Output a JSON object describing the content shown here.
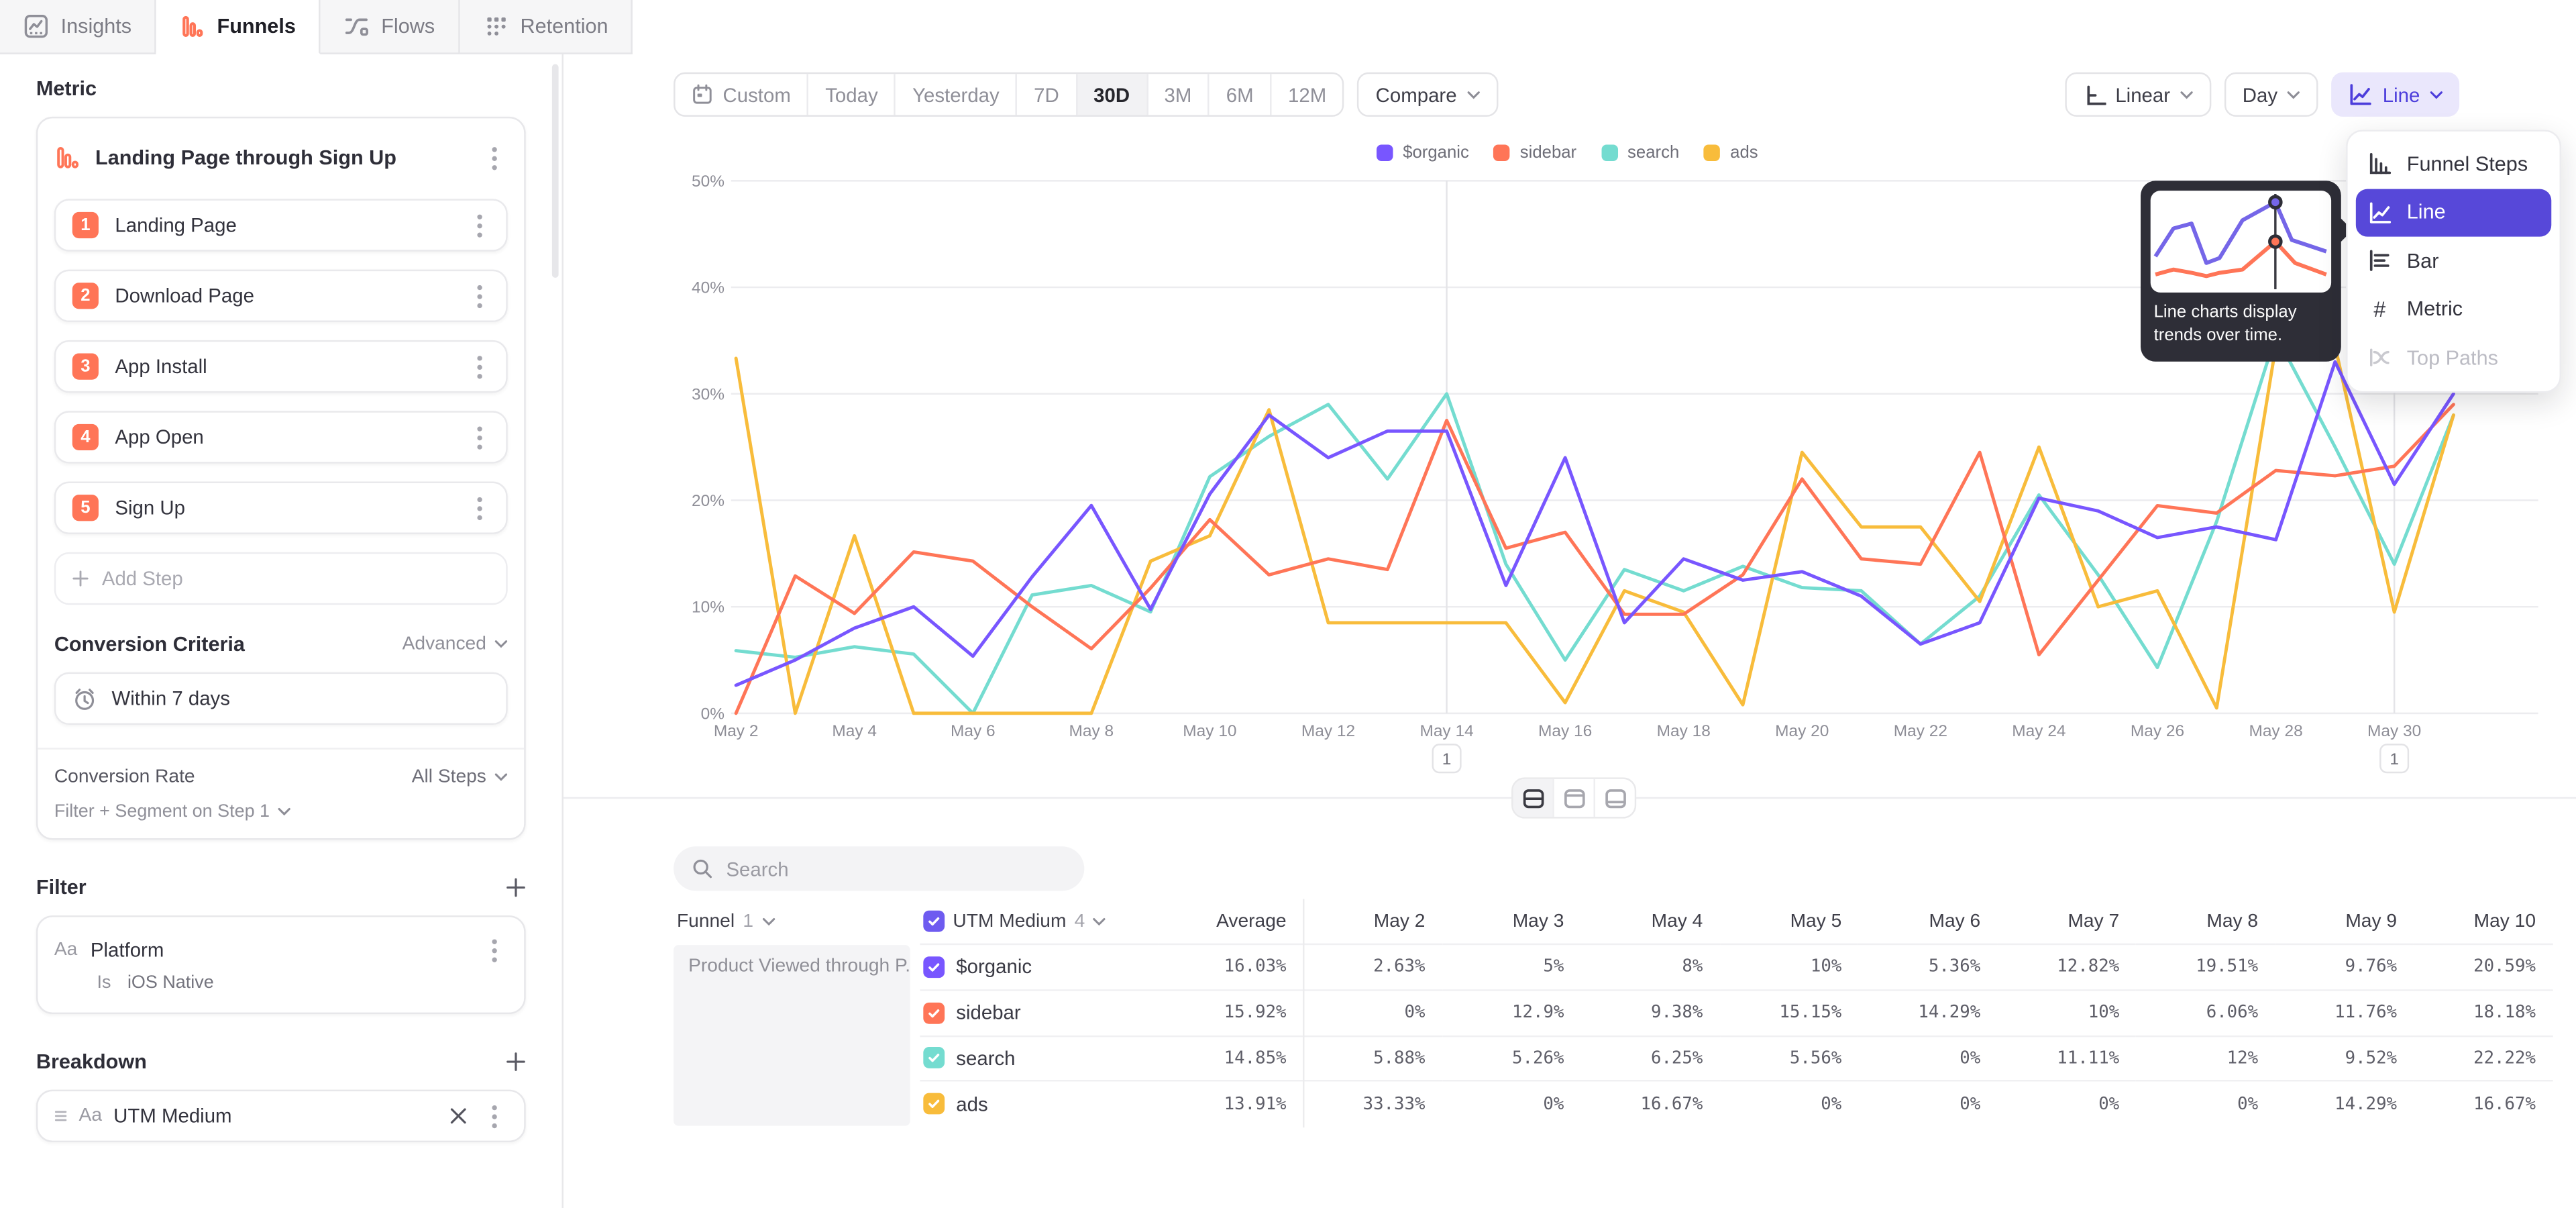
{
  "tabs": [
    {
      "label": "Insights",
      "icon": "insights-icon",
      "active": false
    },
    {
      "label": "Funnels",
      "icon": "funnels-icon",
      "active": true
    },
    {
      "label": "Flows",
      "icon": "flows-icon",
      "active": false
    },
    {
      "label": "Retention",
      "icon": "retention-icon",
      "active": false
    }
  ],
  "sidebar": {
    "metric_label": "Metric",
    "metric_title": "Landing Page through Sign Up",
    "steps": [
      {
        "num": "1",
        "label": "Landing Page"
      },
      {
        "num": "2",
        "label": "Download Page"
      },
      {
        "num": "3",
        "label": "App Install"
      },
      {
        "num": "4",
        "label": "App Open"
      },
      {
        "num": "5",
        "label": "Sign Up"
      }
    ],
    "add_step_label": "Add Step",
    "conversion_criteria": {
      "label": "Conversion Criteria",
      "mode": "Advanced",
      "window": "Within 7 days",
      "rate_label": "Conversion Rate",
      "rate_value": "All Steps",
      "segment_label": "Filter + Segment on Step 1"
    },
    "filter": {
      "label": "Filter",
      "type_icon": "Aa",
      "property": "Platform",
      "operator": "Is",
      "value": "iOS Native"
    },
    "breakdown": {
      "label": "Breakdown",
      "type_icon": "Aa",
      "property": "UTM Medium"
    }
  },
  "toolbar": {
    "date_ranges": [
      "Custom",
      "Today",
      "Yesterday",
      "7D",
      "30D",
      "3M",
      "6M",
      "12M"
    ],
    "selected_range": "30D",
    "compare_label": "Compare",
    "scale_label": "Linear",
    "interval_label": "Day",
    "chart_type_label": "Line"
  },
  "chart_type_menu": {
    "items": [
      {
        "label": "Funnel Steps",
        "icon": "funnel-steps-icon",
        "selected": false,
        "disabled": false
      },
      {
        "label": "Line",
        "icon": "line-chart-icon",
        "selected": true,
        "disabled": false
      },
      {
        "label": "Bar",
        "icon": "bar-chart-icon",
        "selected": false,
        "disabled": false
      },
      {
        "label": "Metric",
        "icon": "metric-icon",
        "selected": false,
        "disabled": false
      },
      {
        "label": "Top Paths",
        "icon": "top-paths-icon",
        "selected": false,
        "disabled": true
      }
    ],
    "tooltip_text": "Line charts display trends over time."
  },
  "chart_data": {
    "type": "line",
    "title": "",
    "xlabel": "",
    "ylabel": "",
    "ylim": [
      0,
      50
    ],
    "y_ticks": [
      "0%",
      "10%",
      "20%",
      "30%",
      "40%",
      "50%"
    ],
    "grid": true,
    "legend_position": "top",
    "x": [
      "May 2",
      "May 3",
      "May 4",
      "May 5",
      "May 6",
      "May 7",
      "May 8",
      "May 9",
      "May 10",
      "May 11",
      "May 12",
      "May 13",
      "May 14",
      "May 15",
      "May 16",
      "May 17",
      "May 18",
      "May 19",
      "May 20",
      "May 21",
      "May 22",
      "May 23",
      "May 24",
      "May 25",
      "May 26",
      "May 27",
      "May 28",
      "May 29",
      "May 30",
      "May 31"
    ],
    "x_tick_labels": [
      "May 2",
      "May 4",
      "May 6",
      "May 8",
      "May 10",
      "May 12",
      "May 14",
      "May 16",
      "May 18",
      "May 20",
      "May 22",
      "May 24",
      "May 26",
      "May 28",
      "May 30"
    ],
    "annotations": [
      {
        "x": "May 14",
        "label": "1"
      },
      {
        "x": "May 30",
        "label": "1"
      }
    ],
    "series": [
      {
        "name": "$organic",
        "color": "#7856ff",
        "values": [
          2.63,
          5,
          8,
          10,
          5.36,
          12.82,
          19.51,
          9.76,
          20.59,
          28,
          24,
          26.5,
          26.5,
          12,
          24,
          8.5,
          14.5,
          12.5,
          13.3,
          11,
          6.5,
          8.5,
          20.2,
          19,
          16.5,
          17.5,
          16.3,
          33,
          21.5,
          30
        ]
      },
      {
        "name": "sidebar",
        "color": "#ff7557",
        "values": [
          0,
          12.9,
          9.38,
          15.15,
          14.29,
          10,
          6.06,
          11.76,
          18.18,
          13,
          14.5,
          13.5,
          27.5,
          15.5,
          17,
          9.3,
          9.3,
          13,
          22,
          14.5,
          14,
          24.5,
          5.5,
          12.5,
          19.5,
          18.8,
          22.8,
          22.3,
          23.2,
          29
        ]
      },
      {
        "name": "search",
        "color": "#74dcd0",
        "values": [
          5.88,
          5.26,
          6.25,
          5.56,
          0,
          11.11,
          12,
          9.52,
          22.22,
          26,
          29,
          22,
          30,
          14,
          5,
          13.5,
          11.5,
          13.8,
          11.8,
          11.5,
          6.5,
          11,
          20.5,
          13,
          4.3,
          18,
          35.5,
          25,
          14,
          28
        ]
      },
      {
        "name": "ads",
        "color": "#f8bc3b",
        "values": [
          33.33,
          0,
          16.67,
          0,
          0,
          0,
          0,
          14.29,
          16.67,
          28.5,
          8.5,
          8.5,
          8.5,
          8.5,
          1,
          11.5,
          9.5,
          0.8,
          24.5,
          17.5,
          17.5,
          10.5,
          25,
          10,
          11.5,
          0.5,
          34.5,
          34.5,
          9.5,
          28
        ]
      }
    ]
  },
  "layout_toggles": [
    {
      "name": "split-view",
      "active": true
    },
    {
      "name": "chart-only-view",
      "active": false
    },
    {
      "name": "table-only-view",
      "active": false
    }
  ],
  "search": {
    "placeholder": "Search"
  },
  "table": {
    "funnel_col": {
      "label": "Funnel",
      "count": "1"
    },
    "breakdown_col": {
      "label": "UTM Medium",
      "count": "4"
    },
    "avg_label": "Average",
    "day_cols": [
      "May 2",
      "May 3",
      "May 4",
      "May 5",
      "May 6",
      "May 7",
      "May 8",
      "May 9",
      "May 10"
    ],
    "funnel_name": "Product Viewed through P...",
    "rows": [
      {
        "name": "$organic",
        "color": "#7856ff",
        "average": "16.03%",
        "values": [
          "2.63%",
          "5%",
          "8%",
          "10%",
          "5.36%",
          "12.82%",
          "19.51%",
          "9.76%",
          "20.59%"
        ]
      },
      {
        "name": "sidebar",
        "color": "#ff7557",
        "average": "15.92%",
        "values": [
          "0%",
          "12.9%",
          "9.38%",
          "15.15%",
          "14.29%",
          "10%",
          "6.06%",
          "11.76%",
          "18.18%"
        ]
      },
      {
        "name": "search",
        "color": "#74dcd0",
        "average": "14.85%",
        "values": [
          "5.88%",
          "5.26%",
          "6.25%",
          "5.56%",
          "0%",
          "11.11%",
          "12%",
          "9.52%",
          "22.22%"
        ]
      },
      {
        "name": "ads",
        "color": "#f8bc3b",
        "average": "13.91%",
        "values": [
          "33.33%",
          "0%",
          "16.67%",
          "0%",
          "0%",
          "0%",
          "0%",
          "14.29%",
          "16.67%"
        ]
      }
    ]
  }
}
